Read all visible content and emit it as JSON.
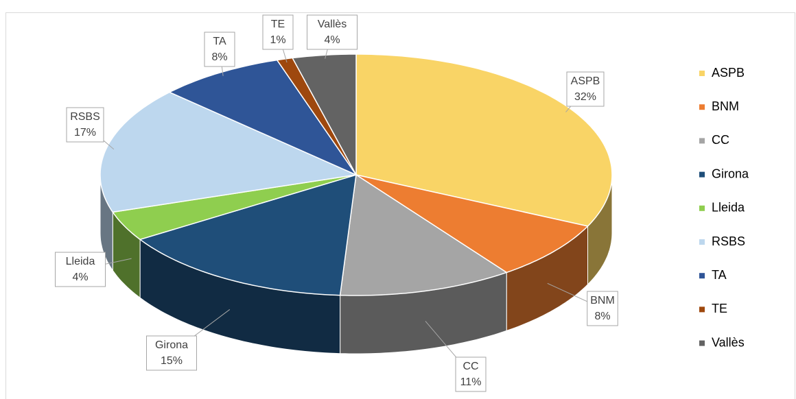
{
  "chart_data": {
    "type": "pie3d",
    "categories": [
      "ASPB",
      "BNM",
      "CC",
      "Girona",
      "Lleida",
      "RSBS",
      "TA",
      "TE",
      "Vallès"
    ],
    "values": [
      32,
      8,
      11,
      15,
      4,
      17,
      8,
      1,
      4
    ],
    "value_labels": [
      "32%",
      "8%",
      "11%",
      "15%",
      "4%",
      "17%",
      "8%",
      "1%",
      "4%"
    ],
    "colors": [
      "#f9d466",
      "#ed7d31",
      "#a5a5a5",
      "#1f4e79",
      "#8fce4f",
      "#bdd7ee",
      "#2f5597",
      "#9e480e",
      "#636363"
    ],
    "legend": "right"
  }
}
